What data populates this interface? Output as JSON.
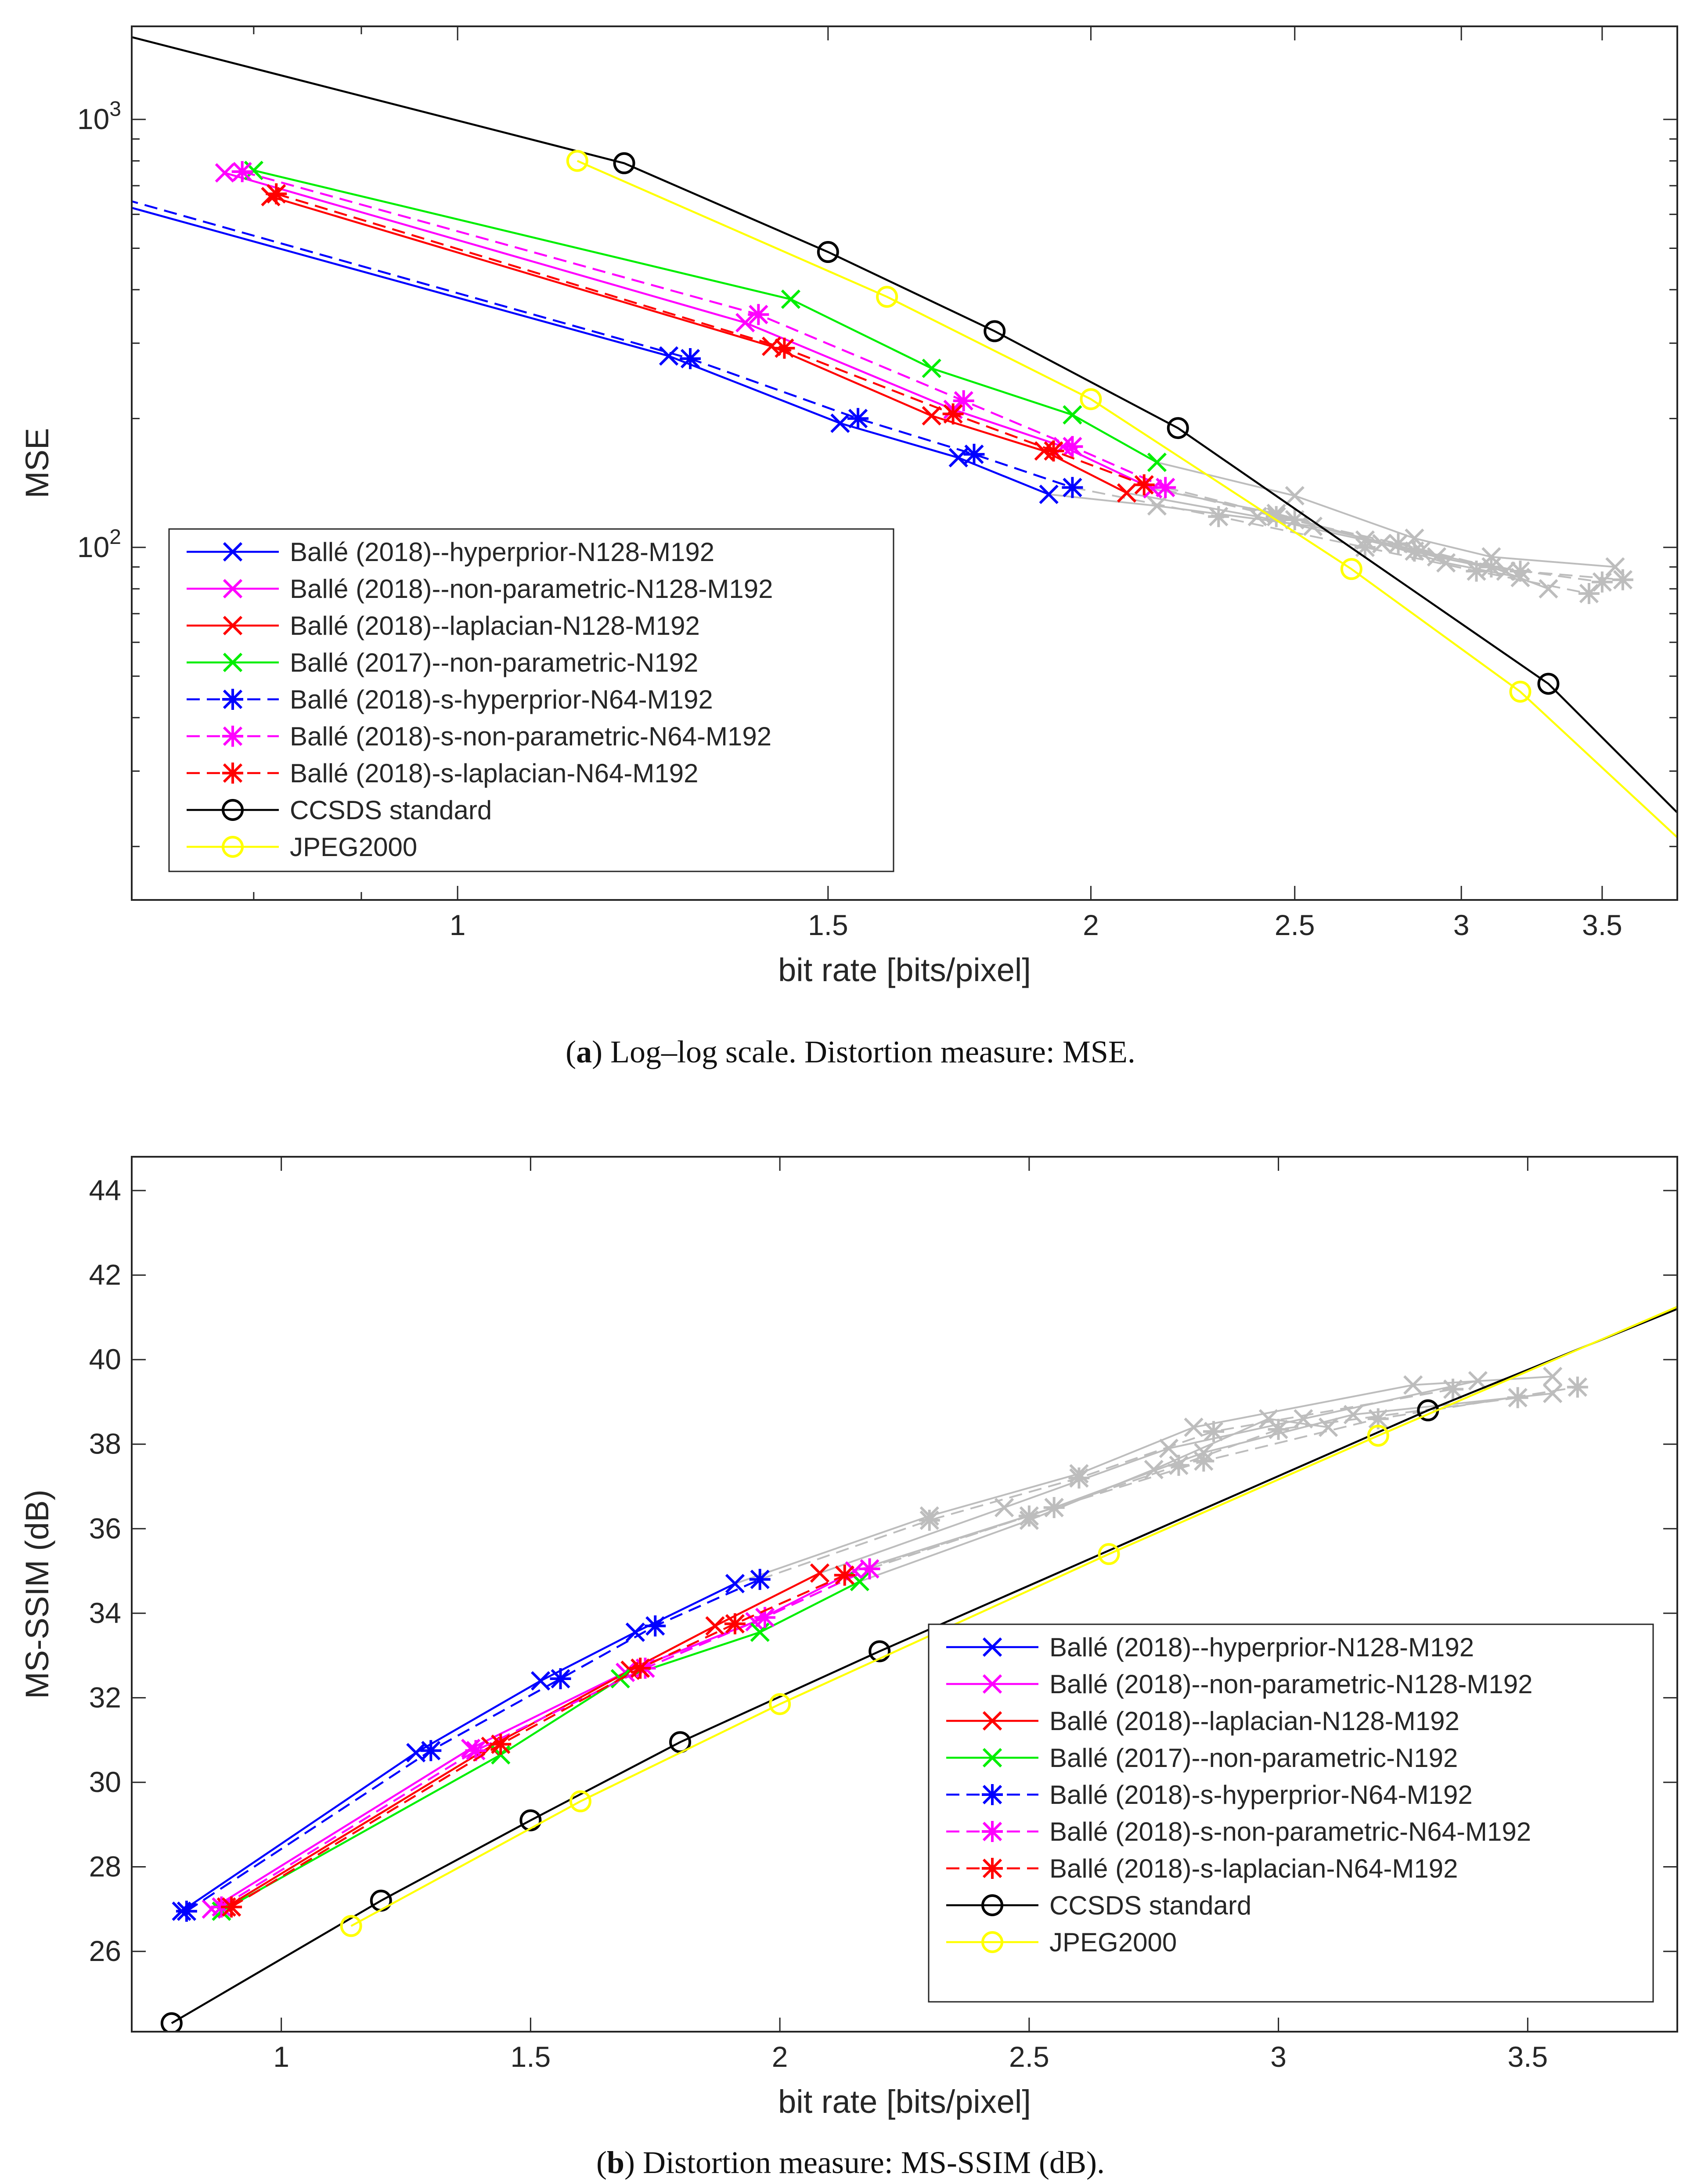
{
  "chart_data": [
    {
      "type": "line",
      "id": "a",
      "xscale": "log",
      "yscale": "log",
      "xlim": [
        0.7,
        3.8
      ],
      "ylim": [
        15,
        1650
      ],
      "xlabel": "bit rate [bits/pixel]",
      "ylabel": "MSE",
      "xticks": [
        1,
        1.5,
        2,
        2.5,
        3,
        3.5
      ],
      "xtick_labels": [
        "1",
        "1.5",
        "2",
        "2.5",
        "3",
        "3.5"
      ],
      "yticks": [
        100,
        1000
      ],
      "ytick_labels": [
        {
          "base": "10",
          "exp": "2"
        },
        {
          "base": "10",
          "exp": "3"
        }
      ],
      "caption_label": "a",
      "caption_text": ") Log–log scale. Distortion measure: MSE.",
      "legend_position": "lower-left",
      "series": [
        {
          "name": "Ballé (2018)--hyperprior-N128-M192",
          "color": "#0000ff",
          "dash": "solid",
          "marker": "x",
          "x": [
            0.685,
            1.26,
            1.52,
            1.73,
            1.91
          ],
          "y": [
            640,
            280,
            195,
            162,
            133
          ],
          "gray_x": [
            1.91,
            2.15,
            2.55,
            2.87,
            3.1,
            3.3
          ],
          "gray_y": [
            133,
            125,
            112,
            98,
            90,
            80
          ]
        },
        {
          "name": "Ballé (2018)--non-parametric-N128-M192",
          "color": "#ff00ff",
          "dash": "solid",
          "marker": "x",
          "x": [
            0.775,
            1.37,
            1.72,
            1.94,
            2.14
          ],
          "y": [
            750,
            335,
            210,
            172,
            137
          ],
          "gray_x": [
            2.14,
            2.45,
            2.75,
            2.95,
            3.2
          ],
          "gray_y": [
            137,
            120,
            102,
            92,
            85
          ]
        },
        {
          "name": "Ballé (2018)--laplacian-N128-M192",
          "color": "#ff0000",
          "dash": "solid",
          "marker": "x",
          "x": [
            0.815,
            1.41,
            1.68,
            1.9,
            2.08
          ],
          "y": [
            660,
            295,
            203,
            168,
            134
          ],
          "gray_x": [
            2.08,
            2.4,
            2.7,
            2.92,
            3.15
          ],
          "gray_y": [
            134,
            118,
            104,
            95,
            88
          ]
        },
        {
          "name": "Ballé (2017)--non-parametric-N192",
          "color": "#00ee00",
          "dash": "solid",
          "marker": "x",
          "x": [
            0.8,
            1.44,
            1.68,
            1.96,
            2.15
          ],
          "y": [
            760,
            380,
            262,
            204,
            158
          ],
          "gray_x": [
            2.15,
            2.5,
            2.85,
            3.1,
            3.55
          ],
          "gray_y": [
            158,
            132,
            105,
            95,
            90
          ]
        },
        {
          "name": "Ballé (2018)-s-hyperprior-N64-M192",
          "color": "#0000ff",
          "dash": "dashed",
          "marker": "star",
          "x": [
            0.695,
            1.29,
            1.55,
            1.76,
            1.96
          ],
          "y": [
            650,
            276,
            200,
            165,
            138
          ],
          "gray_x": [
            1.96,
            2.3,
            2.7,
            3.05,
            3.45
          ],
          "gray_y": [
            138,
            118,
            100,
            88,
            78
          ]
        },
        {
          "name": "Ballé (2018)-s-non-parametric-N64-M192",
          "color": "#ff00ff",
          "dash": "dashed",
          "marker": "star",
          "x": [
            0.79,
            1.39,
            1.74,
            1.96,
            2.17
          ],
          "y": [
            755,
            350,
            220,
            172,
            138
          ],
          "gray_x": [
            2.17,
            2.5,
            2.85,
            3.2,
            3.58
          ],
          "gray_y": [
            138,
            116,
            98,
            88,
            84
          ]
        },
        {
          "name": "Ballé (2018)-s-laplacian-N64-M192",
          "color": "#ff0000",
          "dash": "dashed",
          "marker": "star",
          "x": [
            0.82,
            1.43,
            1.72,
            1.92,
            2.12
          ],
          "y": [
            670,
            292,
            205,
            168,
            140
          ],
          "gray_x": [
            2.12,
            2.45,
            2.8,
            3.1,
            3.5
          ],
          "gray_y": [
            140,
            118,
            102,
            90,
            83
          ]
        },
        {
          "name": "CCSDS standard",
          "color": "#000000",
          "dash": "solid",
          "marker": "o",
          "x": [
            0.685,
            1.2,
            1.5,
            1.8,
            2.2,
            3.3,
            3.8
          ],
          "y": [
            1600,
            790,
            490,
            320,
            190,
            48,
            24
          ],
          "gray_x": [],
          "gray_y": []
        },
        {
          "name": "JPEG2000",
          "color": "#ffff00",
          "dash": "solid",
          "marker": "o",
          "x": [
            1.14,
            1.6,
            2.0,
            2.66,
            3.2,
            3.8
          ],
          "y": [
            800,
            385,
            222,
            89,
            46,
            21
          ],
          "gray_x": [],
          "gray_y": []
        }
      ]
    },
    {
      "type": "line",
      "id": "b",
      "xscale": "linear",
      "yscale": "linear",
      "xlim": [
        0.7,
        3.8
      ],
      "ylim": [
        24.1,
        44.8
      ],
      "xlabel": "bit rate [bits/pixel]",
      "ylabel": "MS-SSIM (dB)",
      "xticks": [
        1,
        1.5,
        2,
        2.5,
        3,
        3.5
      ],
      "xtick_labels": [
        "1",
        "1.5",
        "2",
        "2.5",
        "3",
        "3.5"
      ],
      "yticks": [
        26,
        28,
        30,
        32,
        34,
        36,
        38,
        40,
        42,
        44
      ],
      "ytick_labels": [
        "26",
        "28",
        "30",
        "32",
        "34",
        "36",
        "38",
        "40",
        "42",
        "44"
      ],
      "caption_label": "b",
      "caption_text": ") Distortion measure: MS-SSIM (dB).",
      "legend_position": "lower-right",
      "series": [
        {
          "name": "Ballé (2018)--hyperprior-N128-M192",
          "color": "#0000ff",
          "dash": "solid",
          "marker": "x",
          "x": [
            0.8,
            1.27,
            1.52,
            1.71,
            1.91
          ],
          "y": [
            26.95,
            30.7,
            32.4,
            33.55,
            34.7
          ],
          "gray_x": [
            1.91,
            2.3,
            2.6,
            2.83,
            3.27,
            3.55
          ],
          "gray_y": [
            34.7,
            36.3,
            37.3,
            38.4,
            39.4,
            39.6
          ]
        },
        {
          "name": "Ballé (2018)--non-parametric-N128-M192",
          "color": "#ff00ff",
          "dash": "solid",
          "marker": "x",
          "x": [
            0.86,
            1.38,
            1.69,
            1.95,
            2.15
          ],
          "y": [
            27.0,
            30.8,
            32.6,
            33.8,
            35.0
          ],
          "gray_x": [
            2.15,
            2.55,
            2.85,
            3.15,
            3.55
          ],
          "gray_y": [
            35.0,
            36.5,
            37.8,
            38.7,
            39.2
          ]
        },
        {
          "name": "Ballé (2018)--laplacian-N128-M192",
          "color": "#ff0000",
          "dash": "solid",
          "marker": "x",
          "x": [
            0.89,
            1.42,
            1.7,
            1.87,
            2.08
          ],
          "y": [
            27.05,
            30.85,
            32.65,
            33.7,
            34.95
          ],
          "gray_x": [
            2.08,
            2.45,
            2.78,
            3.05,
            3.4
          ],
          "gray_y": [
            34.95,
            36.5,
            37.9,
            38.6,
            39.5
          ]
        },
        {
          "name": "Ballé (2017)--non-parametric-N192",
          "color": "#00ee00",
          "dash": "solid",
          "marker": "x",
          "x": [
            0.88,
            1.44,
            1.68,
            1.96,
            2.16
          ],
          "y": [
            26.95,
            30.65,
            32.45,
            33.55,
            34.75
          ],
          "gray_x": [
            2.16,
            2.5,
            2.75,
            2.98,
            3.1
          ],
          "gray_y": [
            34.75,
            36.2,
            37.4,
            38.6,
            38.4
          ]
        },
        {
          "name": "Ballé (2018)-s-hyperprior-N64-M192",
          "color": "#0000ff",
          "dash": "dashed",
          "marker": "star",
          "x": [
            0.81,
            1.3,
            1.56,
            1.75,
            1.96
          ],
          "y": [
            26.95,
            30.75,
            32.45,
            33.7,
            34.8
          ],
          "gray_x": [
            1.96,
            2.3,
            2.6,
            2.87,
            3.35
          ],
          "gray_y": [
            34.8,
            36.2,
            37.2,
            38.3,
            39.3
          ]
        },
        {
          "name": "Ballé (2018)-s-non-parametric-N64-M192",
          "color": "#ff00ff",
          "dash": "dashed",
          "marker": "star",
          "x": [
            0.88,
            1.39,
            1.73,
            1.97,
            2.18
          ],
          "y": [
            27.05,
            30.75,
            32.7,
            33.9,
            35.05
          ],
          "gray_x": [
            2.18,
            2.55,
            2.85,
            3.2,
            3.6
          ],
          "gray_y": [
            35.05,
            36.5,
            37.6,
            38.6,
            39.35
          ]
        },
        {
          "name": "Ballé (2018)-s-laplacian-N64-M192",
          "color": "#ff0000",
          "dash": "dashed",
          "marker": "star",
          "x": [
            0.9,
            1.44,
            1.72,
            1.91,
            2.13
          ],
          "y": [
            27.05,
            30.9,
            32.7,
            33.75,
            34.9
          ],
          "gray_x": [
            2.13,
            2.5,
            2.8,
            3.0,
            3.48
          ],
          "gray_y": [
            34.9,
            36.3,
            37.5,
            38.35,
            39.1
          ]
        },
        {
          "name": "CCSDS standard",
          "color": "#000000",
          "dash": "solid",
          "marker": "o",
          "x": [
            0.78,
            1.2,
            1.5,
            1.8,
            2.2,
            3.3,
            3.8
          ],
          "y": [
            24.3,
            27.2,
            29.1,
            30.95,
            33.1,
            38.8,
            41.2
          ],
          "gray_x": [],
          "gray_y": []
        },
        {
          "name": "JPEG2000",
          "color": "#ffff00",
          "dash": "solid",
          "marker": "o",
          "x": [
            1.14,
            1.6,
            2.0,
            2.66,
            3.2,
            3.8
          ],
          "y": [
            26.6,
            29.55,
            31.85,
            35.4,
            38.2,
            41.25
          ],
          "gray_x": [],
          "gray_y": []
        }
      ]
    }
  ]
}
